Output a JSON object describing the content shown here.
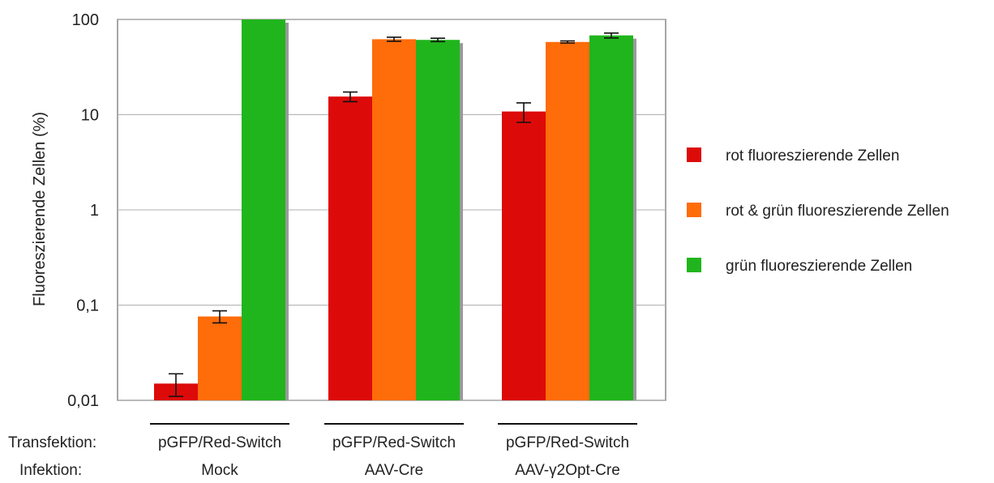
{
  "chart_data": {
    "type": "bar",
    "title": "",
    "ylabel": "Fluoreszierende Zellen (%)",
    "yscale": "log",
    "ylim": [
      0.01,
      100
    ],
    "yticks": [
      {
        "value": 100,
        "label": "100"
      },
      {
        "value": 10,
        "label": "10"
      },
      {
        "value": 1,
        "label": "1"
      },
      {
        "value": 0.1,
        "label": "0,1"
      },
      {
        "value": 0.01,
        "label": "0,01"
      }
    ],
    "grid": true,
    "legend_position": "right",
    "row_labels": {
      "transfection": "Transfektion:",
      "infection": "Infektion:"
    },
    "groups": [
      {
        "transfection": "pGFP/Red-Switch",
        "infection": "Mock"
      },
      {
        "transfection": "pGFP/Red-Switch",
        "infection": "AAV-Cre"
      },
      {
        "transfection": "pGFP/Red-Switch",
        "infection": "AAV-γ2Opt-Cre"
      }
    ],
    "series": [
      {
        "name": "rot fluoreszierende Zellen",
        "color": "#dd0a0a",
        "values": [
          0.015,
          15.5,
          10.8
        ],
        "errors": [
          0.004,
          1.8,
          2.5
        ]
      },
      {
        "name": "rot & grün fluoreszierende Zellen",
        "color": "#ff6c0a",
        "values": [
          0.076,
          62,
          58
        ],
        "errors": [
          0.011,
          3,
          1.5
        ]
      },
      {
        "name": "grün fluoreszierende Zellen",
        "color": "#20b51c",
        "values": [
          100,
          61,
          68
        ],
        "errors": [
          0,
          2.5,
          4
        ]
      }
    ]
  }
}
